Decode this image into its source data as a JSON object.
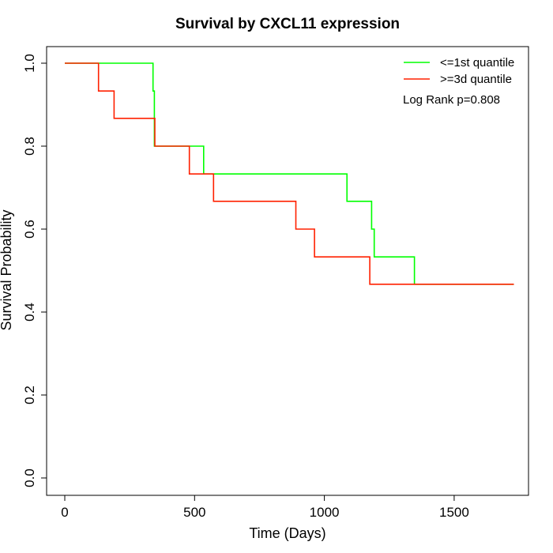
{
  "chart_data": {
    "type": "line",
    "title": "Survival by CXCL11 expression",
    "xlabel": "Time (Days)",
    "ylabel": "Survival Probability",
    "xlim": [
      0,
      1800
    ],
    "ylim": [
      0,
      1.0
    ],
    "xticks": [
      0,
      500,
      1000,
      1500
    ],
    "yticks": [
      0.0,
      0.2,
      0.4,
      0.6,
      0.8,
      1.0
    ],
    "ytick_labels": [
      "0.0",
      "0.2",
      "0.4",
      "0.6",
      "0.8",
      "1.0"
    ],
    "step": true,
    "grid": false,
    "legend_position": "top-right",
    "annotation": "Log Rank p=0.808",
    "series": [
      {
        "name": "<=1st quantile",
        "color": "#00ff00",
        "x": [
          0,
          333,
          340,
          345,
          535,
          1087,
          1182,
          1192,
          1347,
          1347,
          1730
        ],
        "y": [
          1.0,
          1.0,
          0.933,
          0.8,
          0.733,
          0.667,
          0.6,
          0.533,
          0.533,
          0.467,
          0.467
        ]
      },
      {
        "name": ">=3d quantile",
        "color": "#ff2000",
        "x": [
          0,
          130,
          190,
          347,
          480,
          573,
          890,
          962,
          1175,
          1730
        ],
        "y": [
          1.0,
          0.933,
          0.867,
          0.8,
          0.733,
          0.667,
          0.6,
          0.533,
          0.467,
          0.467
        ]
      }
    ]
  }
}
